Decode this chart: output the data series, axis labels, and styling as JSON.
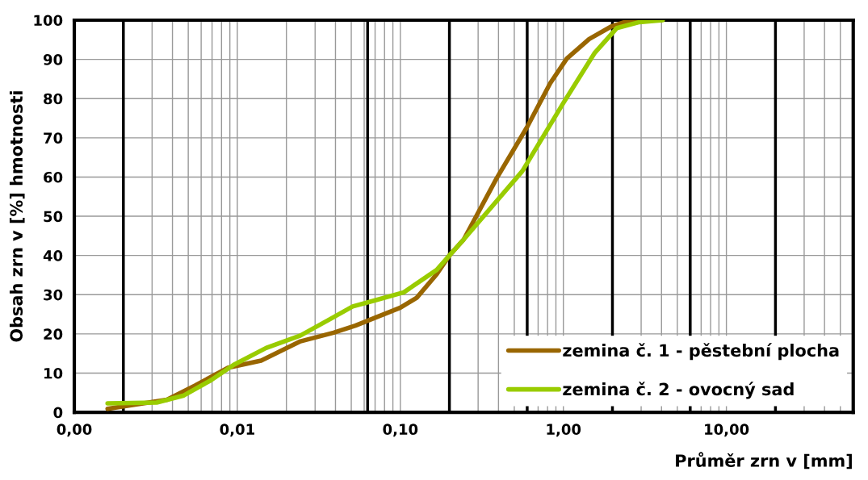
{
  "chart_data": {
    "type": "line",
    "xlabel": "Průměr zrn v [mm]",
    "ylabel": "Obsah zrn v [%] hmotnosti",
    "log": "x",
    "xlim": [
      0.001,
      60
    ],
    "ylim": [
      0,
      100
    ],
    "xticks": [
      {
        "value": 0.001,
        "label": "0,00"
      },
      {
        "value": 0.01,
        "label": "0,01"
      },
      {
        "value": 0.1,
        "label": "0,10"
      },
      {
        "value": 1,
        "label": "1,00"
      },
      {
        "value": 10,
        "label": "10,00"
      }
    ],
    "yticks": [
      0,
      10,
      20,
      30,
      40,
      50,
      60,
      70,
      80,
      90,
      100
    ],
    "grid": true,
    "legend": "bottom right",
    "marker": "none",
    "line_style": "solid",
    "series": [
      {
        "name": "zemina č. 1 - pěstební plocha",
        "color": "#996600",
        "x": [
          0.0016,
          0.0037,
          0.0055,
          0.0088,
          0.014,
          0.0244,
          0.039,
          0.053,
          0.068,
          0.1,
          0.126,
          0.167,
          0.2,
          0.245,
          0.39,
          0.6,
          0.83,
          1.05,
          1.44,
          1.97,
          2.5,
          2.93
        ],
        "values": [
          0.9,
          3.2,
          6.8,
          11.4,
          13.2,
          18.1,
          20.3,
          22.1,
          23.9,
          26.7,
          29.2,
          35.2,
          40,
          44.1,
          59.7,
          72.8,
          83.9,
          90.2,
          95.2,
          98.4,
          99.8,
          100
        ]
      },
      {
        "name": "zemina č. 2 - ovocný sad",
        "color": "#99cc00",
        "x": [
          0.0016,
          0.0032,
          0.0047,
          0.0069,
          0.0095,
          0.015,
          0.0244,
          0.0376,
          0.051,
          0.068,
          0.105,
          0.167,
          0.2,
          0.245,
          0.56,
          1.0,
          1.56,
          2.13,
          2.93,
          4.07
        ],
        "values": [
          2.3,
          2.5,
          4.3,
          8.2,
          12.1,
          16.4,
          19.6,
          23.9,
          27,
          28.4,
          30.6,
          36.3,
          40,
          44.1,
          61.5,
          78.9,
          91.7,
          98,
          99.5,
          100
        ]
      }
    ],
    "ref_lines": [
      {
        "axis": "x",
        "value": 0.002,
        "color": "#000000"
      },
      {
        "axis": "x",
        "value": 0.063,
        "color": "#000000"
      },
      {
        "axis": "x",
        "value": 0.2,
        "color": "#000000"
      },
      {
        "axis": "x",
        "value": 0.6,
        "color": "#000000"
      },
      {
        "axis": "x",
        "value": 2,
        "color": "#000000"
      },
      {
        "axis": "x",
        "value": 6,
        "color": "#000000"
      },
      {
        "axis": "x",
        "value": 20,
        "color": "#000000"
      }
    ]
  }
}
